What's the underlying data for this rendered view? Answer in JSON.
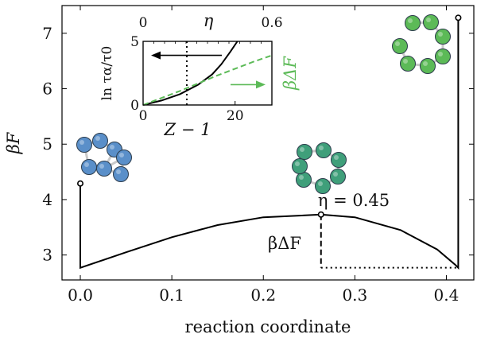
{
  "chart_data": [
    {
      "type": "line",
      "xlabel": "reaction coordinate",
      "ylabel": "βF",
      "xlim": [
        -0.02,
        0.43
      ],
      "ylim": [
        2.55,
        7.5
      ],
      "xticks": [
        0.0,
        0.1,
        0.2,
        0.3,
        0.4
      ],
      "xtick_labels": [
        "0.0",
        "0.1",
        "0.2",
        "0.3",
        "0.4"
      ],
      "yticks": [
        3,
        4,
        5,
        6,
        7
      ],
      "ytick_labels": [
        "3",
        "4",
        "5",
        "6",
        "7"
      ],
      "grid": false,
      "series": [
        {
          "x": [
            0.0,
            0.0,
            0.05,
            0.1,
            0.15,
            0.2,
            0.263,
            0.3,
            0.35,
            0.39,
            0.41,
            0.413,
            0.413
          ],
          "y": [
            4.29,
            2.77,
            3.05,
            3.32,
            3.54,
            3.68,
            3.73,
            3.68,
            3.45,
            3.1,
            2.82,
            2.77,
            7.28
          ]
        }
      ],
      "markers": [
        {
          "x": 0.0,
          "y": 4.29
        },
        {
          "x": 0.263,
          "y": 3.73
        },
        {
          "x": 0.413,
          "y": 7.28
        }
      ],
      "barrier": {
        "x": 0.263,
        "y_top": 3.73,
        "y_bottom": 2.77,
        "x_end": 0.413
      },
      "annotations": {
        "eta_label": "η = 0.45",
        "barrier_label": "βΔF"
      },
      "cluster_images": [
        {
          "name": "blue-cluster",
          "color": "#5a8fc9"
        },
        {
          "name": "teal-cluster",
          "color": "#3f9f7a"
        },
        {
          "name": "green-cluster",
          "color": "#5cba57"
        }
      ]
    },
    {
      "type": "line",
      "inset": true,
      "xlabel": "Z − 1",
      "top_xlabel": "η",
      "ylabel": "ln τα/τ0",
      "right_ylabel": "βΔF",
      "xlim": [
        0,
        28
      ],
      "ylim": [
        0,
        5
      ],
      "xticks": [
        0,
        20
      ],
      "xtick_labels": [
        "0",
        "20"
      ],
      "yticks": [
        0,
        5
      ],
      "ytick_labels": [
        "0",
        "5"
      ],
      "top_xticks": [
        0,
        0.6
      ],
      "top_xtick_labels": [
        "0",
        "0.6"
      ],
      "vline_x": 9.5,
      "series": [
        {
          "color": "#000000",
          "style": "solid",
          "x": [
            0,
            4,
            8,
            12,
            15,
            17,
            19,
            20.5
          ],
          "y": [
            0,
            0.35,
            0.85,
            1.6,
            2.4,
            3.2,
            4.2,
            5.0
          ]
        },
        {
          "color": "#5cba57",
          "style": "dashed",
          "x": [
            0,
            8,
            16,
            24,
            28
          ],
          "y": [
            0,
            1.1,
            2.3,
            3.4,
            3.9
          ]
        }
      ],
      "arrows": [
        {
          "color": "#000000",
          "direction": "left",
          "y": 3.9
        },
        {
          "color": "#5cba57",
          "direction": "right",
          "y": 1.6
        }
      ]
    }
  ]
}
